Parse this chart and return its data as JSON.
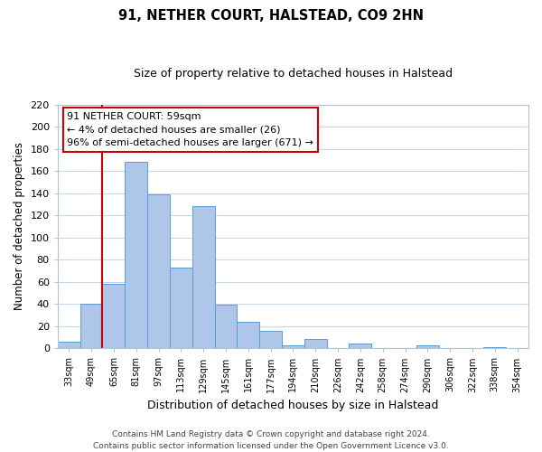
{
  "title": "91, NETHER COURT, HALSTEAD, CO9 2HN",
  "subtitle": "Size of property relative to detached houses in Halstead",
  "xlabel": "Distribution of detached houses by size in Halstead",
  "ylabel": "Number of detached properties",
  "bar_labels": [
    "33sqm",
    "49sqm",
    "65sqm",
    "81sqm",
    "97sqm",
    "113sqm",
    "129sqm",
    "145sqm",
    "161sqm",
    "177sqm",
    "194sqm",
    "210sqm",
    "226sqm",
    "242sqm",
    "258sqm",
    "274sqm",
    "290sqm",
    "306sqm",
    "322sqm",
    "338sqm",
    "354sqm"
  ],
  "bar_heights": [
    6,
    40,
    58,
    168,
    139,
    73,
    128,
    39,
    24,
    16,
    3,
    8,
    0,
    4,
    0,
    0,
    3,
    0,
    0,
    1,
    0
  ],
  "bar_color": "#aec6e8",
  "bar_edge_color": "#5a9fd4",
  "vline_color": "#cc0000",
  "vline_index": 2,
  "ylim": [
    0,
    220
  ],
  "yticks": [
    0,
    20,
    40,
    60,
    80,
    100,
    120,
    140,
    160,
    180,
    200,
    220
  ],
  "annotation_title": "91 NETHER COURT: 59sqm",
  "annotation_line1": "← 4% of detached houses are smaller (26)",
  "annotation_line2": "96% of semi-detached houses are larger (671) →",
  "annotation_box_color": "#ffffff",
  "annotation_box_edge": "#cc0000",
  "footer_line1": "Contains HM Land Registry data © Crown copyright and database right 2024.",
  "footer_line2": "Contains public sector information licensed under the Open Government Licence v3.0.",
  "background_color": "#ffffff",
  "grid_color": "#c8d8e8"
}
